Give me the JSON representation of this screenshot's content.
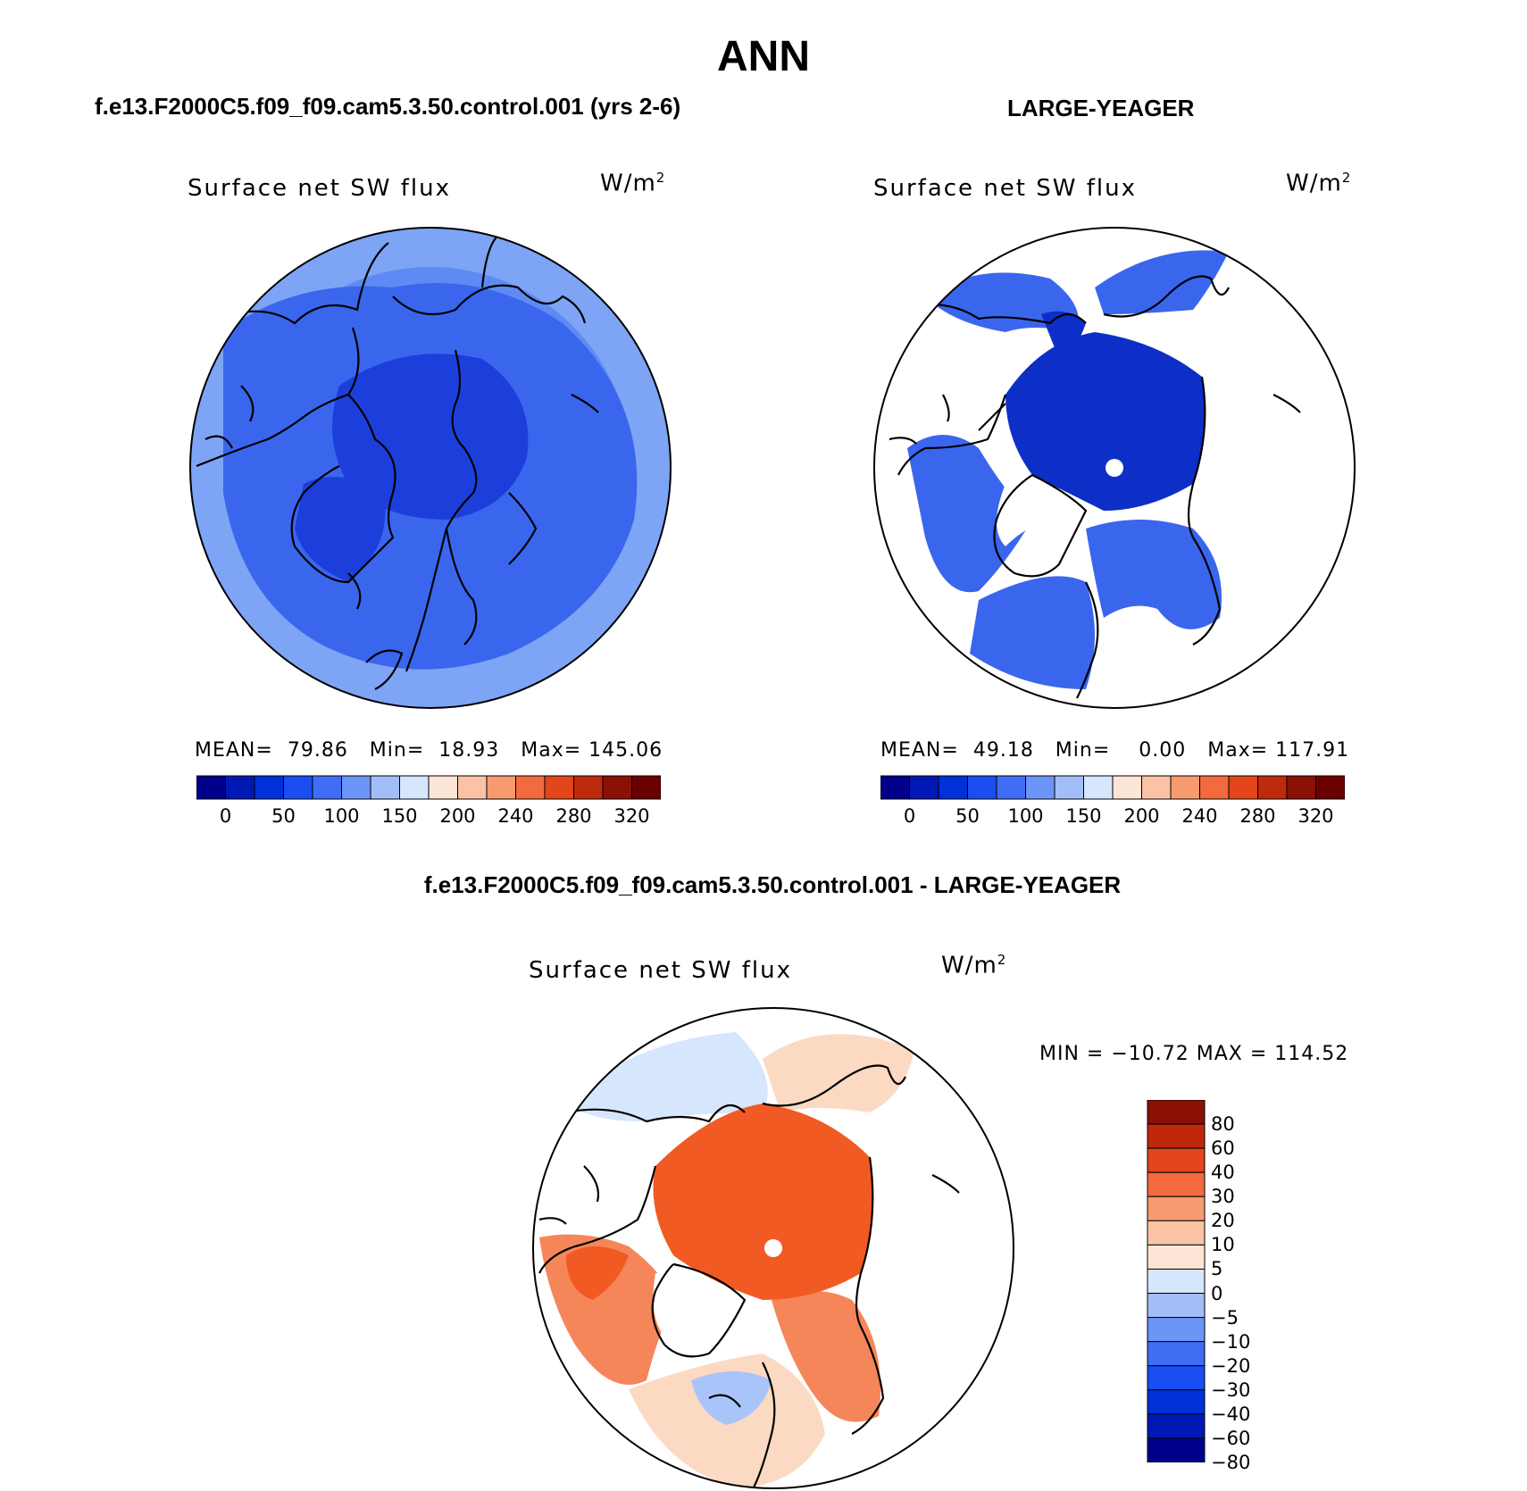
{
  "title": "ANN",
  "panels": {
    "model": {
      "heading": "f.e13.F2000C5.f09_f09.cam5.3.50.control.001 (yrs 2-6)",
      "variable": "Surface net SW flux",
      "units_base": "W/m",
      "units_exp": "2",
      "mean_label": "MEAN=",
      "mean": "79.86",
      "min_label": "Min=",
      "min": "18.93",
      "max_label": "Max=",
      "max": "145.06"
    },
    "obs": {
      "heading": "LARGE-YEAGER",
      "variable": "Surface net SW flux",
      "units_base": "W/m",
      "units_exp": "2",
      "mean_label": "MEAN=",
      "mean": "49.18",
      "min_label": "Min=",
      "min": "0.00",
      "max_label": "Max=",
      "max": "117.91"
    },
    "diff": {
      "heading": "f.e13.F2000C5.f09_f09.cam5.3.50.control.001 - LARGE-YEAGER",
      "variable": "Surface net SW flux",
      "units_base": "W/m",
      "units_exp": "2",
      "minmax": "MIN = −10.72 MAX = 114.52"
    }
  },
  "colorbar_main": {
    "colors": [
      "#00008b",
      "#0018b4",
      "#0030d8",
      "#1a4ef0",
      "#3f6ef5",
      "#6b95f7",
      "#a3bdf9",
      "#d6e6fc",
      "#fde6d6",
      "#fac3a6",
      "#f79a70",
      "#f26a3e",
      "#e2461a",
      "#bd2a0c",
      "#8b1005",
      "#6b0000"
    ],
    "ticks": [
      "0",
      "50",
      "100",
      "150",
      "200",
      "240",
      "280",
      "320"
    ]
  },
  "colorbar_diff": {
    "colors": [
      "#8b1005",
      "#c0280a",
      "#e2461a",
      "#f26a3e",
      "#f79a70",
      "#fac3a6",
      "#fde6d6",
      "#d6e6fc",
      "#a3bdf9",
      "#6b95f7",
      "#3f6ef5",
      "#1a4ef0",
      "#0030d8",
      "#0018b4",
      "#00008b"
    ],
    "ticks": [
      "80",
      "60",
      "40",
      "30",
      "20",
      "10",
      "5",
      "0",
      "−5",
      "−10",
      "−20",
      "−30",
      "−40",
      "−60",
      "−80"
    ]
  },
  "map_colors": {
    "model_ocean_far": "#7ea4f5",
    "model_ocean_mid": "#5d8bf3",
    "model_ocean_near": "#3a66ee",
    "model_arctic": "#1c3fdc",
    "obs_ocean": "#3a66ee",
    "obs_arctic": "#0d2fc8",
    "obs_land": "#ffffff",
    "diff_arctic": "#f15a22",
    "diff_ring": "#f4865a",
    "diff_light": "#fcd9c2",
    "diff_neg": "#d6e6fc",
    "diff_neg2": "#a9c4f8",
    "diff_land": "#ffffff",
    "coast": "#000000"
  }
}
